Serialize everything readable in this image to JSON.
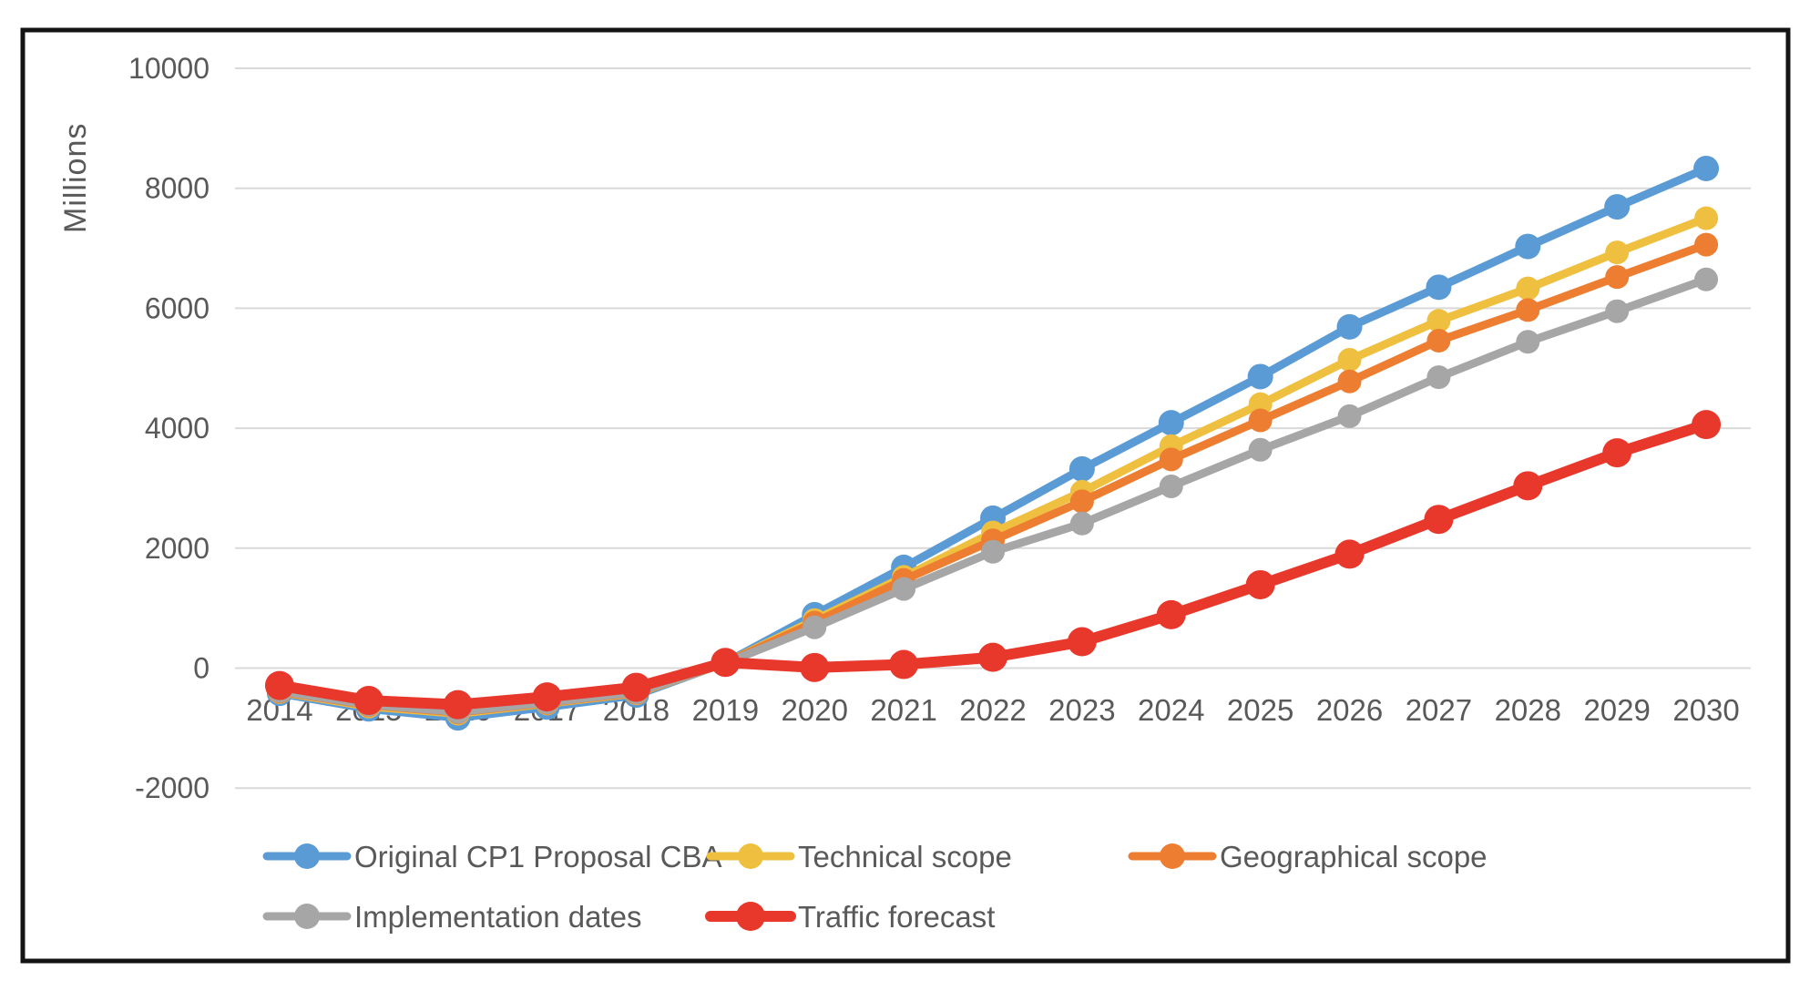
{
  "figure": {
    "background": "#ffffff",
    "border_color": "#141414",
    "grid_color": "#d9d9d9",
    "text_color": "#595959"
  },
  "chart_data": {
    "type": "line",
    "ylabel": "Millions",
    "xlabel": "",
    "ylim": [
      -2000,
      10000
    ],
    "yticks": [
      -2000,
      0,
      2000,
      4000,
      6000,
      8000,
      10000
    ],
    "grid": true,
    "legend_position": "bottom",
    "categories": [
      2014,
      2015,
      2016,
      2017,
      2018,
      2019,
      2020,
      2021,
      2022,
      2023,
      2024,
      2025,
      2026,
      2027,
      2028,
      2029,
      2030
    ],
    "series": [
      {
        "name": "Original CP1 Proposal CBA",
        "color": "#5b9bd5",
        "values": [
          -420,
          -680,
          -830,
          -650,
          -450,
          90,
          890,
          1680,
          2500,
          3320,
          4090,
          4860,
          5690,
          6350,
          7030,
          7690,
          8330
        ]
      },
      {
        "name": "Technical scope",
        "color": "#efc03f",
        "values": [
          -400,
          -640,
          -760,
          -590,
          -420,
          85,
          800,
          1520,
          2260,
          2940,
          3700,
          4400,
          5140,
          5790,
          6330,
          6930,
          7500
        ]
      },
      {
        "name": "Geographical scope",
        "color": "#ed7d31",
        "values": [
          -390,
          -620,
          -740,
          -580,
          -410,
          85,
          760,
          1470,
          2130,
          2780,
          3480,
          4130,
          4780,
          5460,
          5970,
          6520,
          7060
        ]
      },
      {
        "name": "Implementation dates",
        "color": "#a6a6a6",
        "values": [
          -380,
          -610,
          -730,
          -570,
          -400,
          80,
          680,
          1320,
          1940,
          2410,
          3030,
          3640,
          4200,
          4850,
          5440,
          5950,
          6480
        ]
      },
      {
        "name": "Traffic forecast",
        "color": "#e8382b",
        "values": [
          -290,
          -540,
          -610,
          -480,
          -320,
          95,
          10,
          60,
          180,
          440,
          890,
          1390,
          1900,
          2480,
          3040,
          3590,
          4060
        ]
      }
    ]
  }
}
